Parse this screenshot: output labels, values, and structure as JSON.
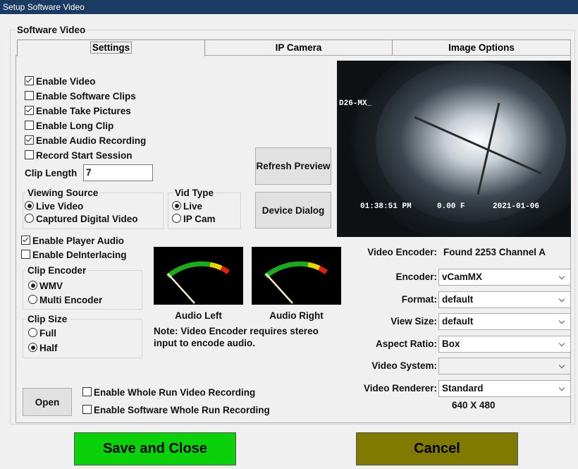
{
  "window": {
    "title": "Setup Software Video"
  },
  "group": {
    "title": "Software Video"
  },
  "tabs": {
    "items": [
      "Settings",
      "IP Camera",
      "Image Options"
    ],
    "selected": 0
  },
  "options": [
    {
      "label": "Enable Video",
      "checked": true
    },
    {
      "label": "Enable Software Clips",
      "checked": false
    },
    {
      "label": "Enable Take Pictures",
      "checked": true
    },
    {
      "label": "Enable Long Clip",
      "checked": false
    },
    {
      "label": "Enable Audio Recording",
      "checked": true
    },
    {
      "label": "Record Start Session",
      "checked": false
    }
  ],
  "clip_length": {
    "label": "Clip Length",
    "value": 7
  },
  "viewing_source": {
    "title": "Viewing Source",
    "options": [
      "Live Video",
      "Captured Digital Video"
    ],
    "selected": 0
  },
  "vid_type": {
    "title": "Vid Type",
    "options": [
      "Live",
      "IP Cam"
    ],
    "selected": 0
  },
  "buttons": {
    "refresh": "Refresh Preview",
    "device": "Device Dialog",
    "open": "Open",
    "save": "Save and Close",
    "cancel": "Cancel"
  },
  "preview": {
    "tag": "D26-MX_",
    "time": "01:38:51 PM",
    "distance": "0.00 F",
    "date": "2021-01-06"
  },
  "player": [
    {
      "label": "Enable Player Audio",
      "checked": true
    },
    {
      "label": "Enable DeInterlacing",
      "checked": false
    }
  ],
  "clip_encoder": {
    "title": "Clip Encoder",
    "options": [
      "WMV",
      "Multi Encoder"
    ],
    "selected": 0
  },
  "clip_size": {
    "title": "Clip Size",
    "options": [
      "Full",
      "Half"
    ],
    "selected": 1
  },
  "meters": {
    "left": "Audio Left",
    "right": "Audio Right"
  },
  "note": "Note: Video Encoder requires stereo input to encode audio.",
  "form": {
    "video_encoder": {
      "label": "Video Encoder:",
      "value": "Found 2253 Channel A"
    },
    "fields": [
      {
        "label": "Encoder:",
        "value": "vCamMX"
      },
      {
        "label": "Format:",
        "value": "default"
      },
      {
        "label": "View Size:",
        "value": "default"
      },
      {
        "label": "Aspect Ratio:",
        "value": "Box"
      },
      {
        "label": "Video System:"
      },
      {
        "label": "Video Renderer:",
        "value": "Standard"
      }
    ],
    "resolution": "640 X 480"
  },
  "whole_run": [
    {
      "label": "Enable Whole Run Video Recording",
      "checked": false
    },
    {
      "label": "Enable Software Whole Run Recording",
      "checked": false
    }
  ]
}
